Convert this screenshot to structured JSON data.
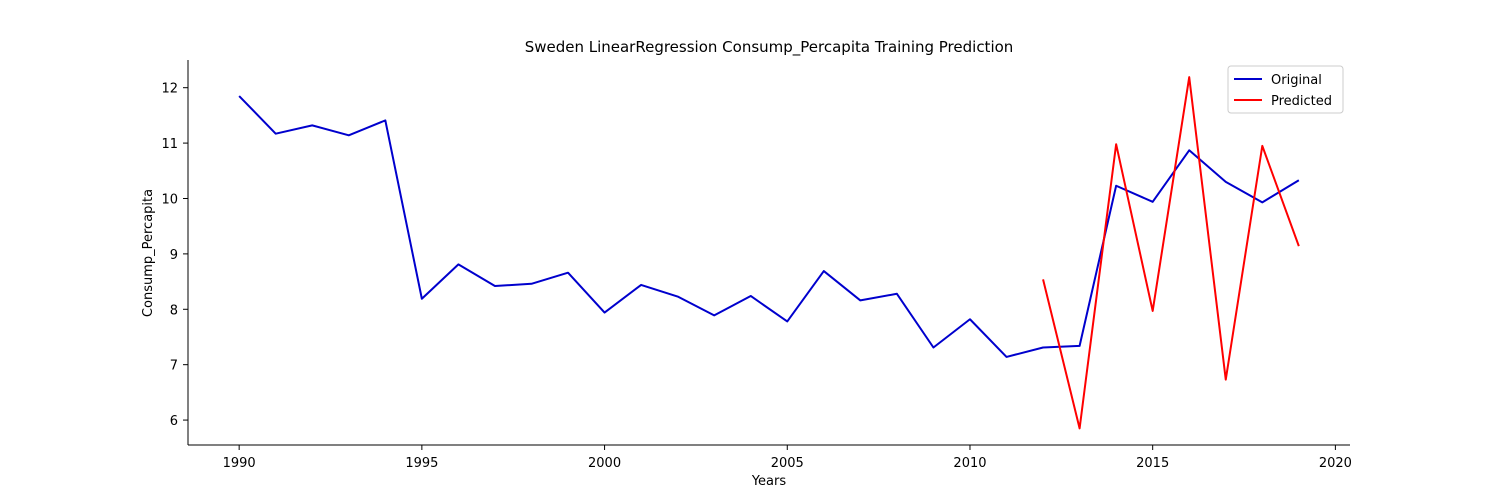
{
  "chart_data": {
    "type": "line",
    "title": "Sweden LinearRegression Consump_Percapita Training Prediction",
    "xlabel": "Years",
    "ylabel": "Consump_Percapita",
    "xlim": [
      1988.6,
      2020.4
    ],
    "ylim": [
      5.55,
      12.5
    ],
    "xticks": [
      1990,
      1995,
      2000,
      2005,
      2010,
      2015,
      2020
    ],
    "yticks": [
      6,
      7,
      8,
      9,
      10,
      11,
      12
    ],
    "grid": false,
    "legend_position": "top-right",
    "series": [
      {
        "name": "Original",
        "color": "#0000cd",
        "x": [
          1990,
          1991,
          1992,
          1993,
          1994,
          1995,
          1996,
          1997,
          1998,
          1999,
          2000,
          2001,
          2002,
          2003,
          2004,
          2005,
          2006,
          2007,
          2008,
          2009,
          2010,
          2011,
          2012,
          2013,
          2014,
          2015,
          2016,
          2017,
          2018,
          2019
        ],
        "values": [
          11.85,
          11.17,
          11.32,
          11.14,
          11.41,
          8.19,
          8.81,
          8.42,
          8.46,
          8.66,
          7.94,
          8.44,
          8.23,
          7.89,
          8.24,
          7.78,
          8.69,
          8.16,
          8.28,
          7.31,
          7.82,
          7.14,
          7.31,
          7.34,
          10.23,
          9.94,
          10.87,
          10.3,
          9.93,
          10.33
        ]
      },
      {
        "name": "Predicted",
        "color": "#ff0000",
        "x": [
          2012,
          2013,
          2014,
          2015,
          2016,
          2017,
          2018,
          2019
        ],
        "values": [
          8.54,
          5.85,
          10.98,
          7.97,
          12.19,
          6.73,
          10.95,
          9.14
        ]
      }
    ]
  }
}
